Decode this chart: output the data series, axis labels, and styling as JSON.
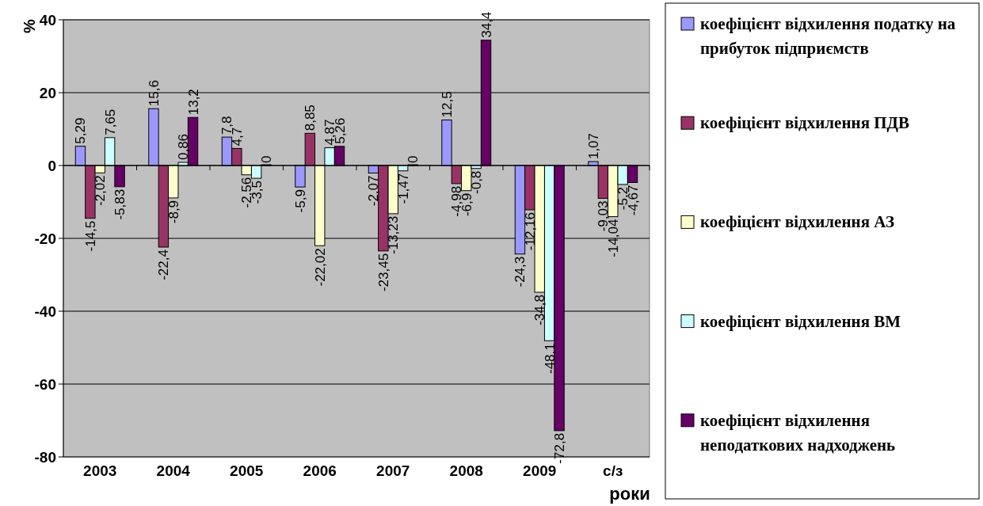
{
  "chart_data": {
    "type": "bar",
    "xlabel": "роки",
    "ylabel": "%",
    "categories": [
      "2003",
      "2004",
      "2005",
      "2006",
      "2007",
      "2008",
      "2009",
      "с/з"
    ],
    "ylim": [
      -80,
      40
    ],
    "yticks": [
      -80,
      -60,
      -40,
      -20,
      0,
      20,
      40
    ],
    "grid": "y",
    "legend": "right",
    "series": [
      {
        "name": "коефіцієнт відхилення податку на прибуток підприємств",
        "color": "#9999ff",
        "values": [
          5.29,
          15.6,
          7.8,
          -5.9,
          -2.07,
          12.5,
          -24.3,
          1.07
        ],
        "value_labels": [
          "5,29",
          "15,6",
          "7,8",
          "-5,9",
          "-2,07",
          "12,5",
          "-24,3",
          "1,07"
        ]
      },
      {
        "name": "коефіцієнт відхилення ПДВ",
        "color": "#993366",
        "values": [
          -14.5,
          -22.4,
          4.7,
          8.85,
          -23.45,
          -4.98,
          -12.16,
          -9.03
        ],
        "value_labels": [
          "-14,5",
          "-22,4",
          "4,7",
          "8,85",
          "-23,45",
          "-4,98",
          "-12,16",
          "-9,03"
        ]
      },
      {
        "name": "коефіцієнт відхилення АЗ",
        "color": "#ffffcc",
        "values": [
          -2.02,
          -8.9,
          -2.56,
          -22.02,
          -13.23,
          -6.9,
          -34.8,
          -14.04
        ],
        "value_labels": [
          "-2,02",
          "-8,9",
          "-2,56",
          "-22,02",
          "-13,23",
          "-6,9",
          "-34,8",
          "-14,04"
        ]
      },
      {
        "name": "коефіцієнт відхилення ВМ",
        "color": "#ccffff",
        "values": [
          7.65,
          0.86,
          -3.5,
          4.87,
          -1.47,
          -0.8,
          -48.1,
          -5.2
        ],
        "value_labels": [
          "7,65",
          "0,86",
          "-3,5",
          "4,87",
          "-1,47",
          "-0,8",
          "-48,1",
          "-5,2"
        ]
      },
      {
        "name": "коефіцієнт відхилення неподаткових надходжень",
        "color": "#660066",
        "values": [
          -5.83,
          13.2,
          0,
          5.26,
          0,
          34.4,
          -72.8,
          -4.67
        ],
        "value_labels": [
          "-5,83",
          "13,2",
          "0",
          "5,26",
          "0",
          "34,4",
          "-72,8",
          "-4,67"
        ]
      }
    ]
  }
}
